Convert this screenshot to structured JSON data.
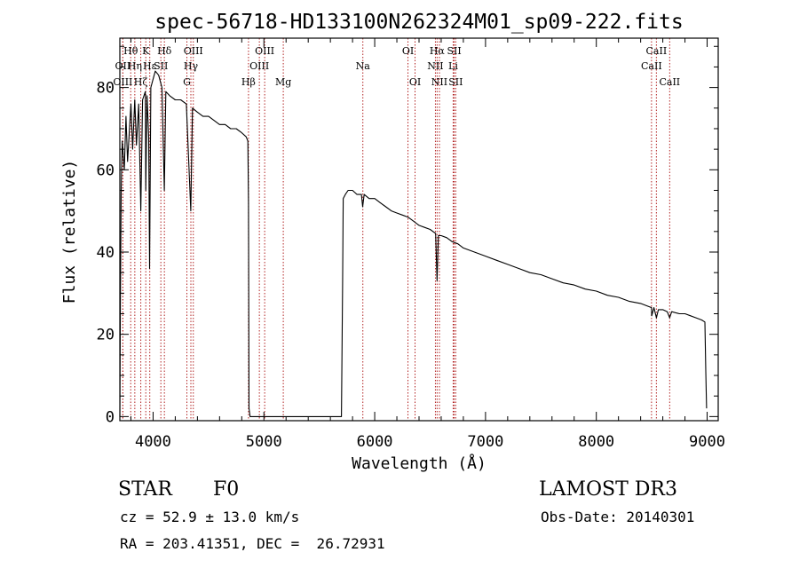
{
  "chart_data": {
    "type": "line",
    "title": "spec-56718-HD133100N262324M01_sp09-222.fits",
    "xlabel": "Wavelength (Å)",
    "ylabel": "Flux (relative)",
    "xlim": [
      3700,
      9100
    ],
    "ylim": [
      -1,
      92
    ],
    "xticks": [
      4000,
      5000,
      6000,
      7000,
      8000,
      9000
    ],
    "yticks": [
      0,
      20,
      40,
      60,
      80
    ],
    "series": [
      {
        "name": "flux",
        "points": [
          [
            3700,
            0
          ],
          [
            3705,
            28
          ],
          [
            3712,
            55
          ],
          [
            3722,
            67
          ],
          [
            3740,
            60
          ],
          [
            3755,
            73
          ],
          [
            3770,
            62
          ],
          [
            3800,
            76
          ],
          [
            3815,
            65
          ],
          [
            3835,
            77
          ],
          [
            3850,
            66
          ],
          [
            3870,
            76
          ],
          [
            3889,
            50
          ],
          [
            3905,
            77
          ],
          [
            3930,
            79
          ],
          [
            3934,
            55
          ],
          [
            3945,
            78
          ],
          [
            3960,
            68
          ],
          [
            3968,
            36
          ],
          [
            3980,
            80
          ],
          [
            4000,
            82
          ],
          [
            4020,
            84
          ],
          [
            4050,
            83
          ],
          [
            4080,
            80
          ],
          [
            4101,
            55
          ],
          [
            4115,
            79
          ],
          [
            4150,
            78
          ],
          [
            4200,
            77
          ],
          [
            4250,
            77
          ],
          [
            4300,
            76
          ],
          [
            4340,
            50
          ],
          [
            4355,
            75
          ],
          [
            4400,
            74
          ],
          [
            4450,
            73
          ],
          [
            4500,
            73
          ],
          [
            4550,
            72
          ],
          [
            4600,
            71
          ],
          [
            4650,
            71
          ],
          [
            4700,
            70
          ],
          [
            4750,
            70
          ],
          [
            4800,
            69
          ],
          [
            4840,
            68
          ],
          [
            4855,
            67
          ],
          [
            4861,
            52
          ],
          [
            4866,
            2
          ],
          [
            4875,
            0
          ],
          [
            5700,
            0
          ],
          [
            5710,
            32
          ],
          [
            5716,
            53
          ],
          [
            5735,
            54
          ],
          [
            5760,
            55
          ],
          [
            5800,
            55
          ],
          [
            5840,
            54
          ],
          [
            5880,
            54
          ],
          [
            5891,
            51
          ],
          [
            5905,
            54
          ],
          [
            5950,
            53
          ],
          [
            6000,
            53
          ],
          [
            6050,
            52
          ],
          [
            6100,
            51
          ],
          [
            6150,
            50
          ],
          [
            6200,
            49.5
          ],
          [
            6250,
            49
          ],
          [
            6300,
            48.5
          ],
          [
            6350,
            47.5
          ],
          [
            6400,
            46.5
          ],
          [
            6450,
            46
          ],
          [
            6500,
            45.5
          ],
          [
            6550,
            44.5
          ],
          [
            6563,
            33
          ],
          [
            6575,
            44
          ],
          [
            6600,
            44
          ],
          [
            6650,
            43.5
          ],
          [
            6700,
            42.5
          ],
          [
            6750,
            42
          ],
          [
            6800,
            41
          ],
          [
            6900,
            40
          ],
          [
            7000,
            39
          ],
          [
            7100,
            38
          ],
          [
            7200,
            37
          ],
          [
            7300,
            36
          ],
          [
            7400,
            35
          ],
          [
            7500,
            34.5
          ],
          [
            7600,
            33.5
          ],
          [
            7700,
            32.5
          ],
          [
            7800,
            32
          ],
          [
            7900,
            31
          ],
          [
            8000,
            30.5
          ],
          [
            8100,
            29.5
          ],
          [
            8200,
            29
          ],
          [
            8300,
            28
          ],
          [
            8400,
            27.5
          ],
          [
            8498,
            26.5
          ],
          [
            8500,
            24.5
          ],
          [
            8520,
            26.5
          ],
          [
            8542,
            24
          ],
          [
            8560,
            26
          ],
          [
            8600,
            26
          ],
          [
            8640,
            25.5
          ],
          [
            8662,
            24
          ],
          [
            8680,
            25.5
          ],
          [
            8750,
            25
          ],
          [
            8800,
            25
          ],
          [
            8850,
            24.5
          ],
          [
            8900,
            24
          ],
          [
            8950,
            23.5
          ],
          [
            8980,
            23
          ],
          [
            8988,
            11
          ],
          [
            8995,
            2
          ]
        ]
      }
    ],
    "lines": [
      {
        "label": "Hθ",
        "x": 3798,
        "row": 0
      },
      {
        "label": "OII",
        "x": 3727,
        "row": 1
      },
      {
        "label": "Hη",
        "x": 3835,
        "row": 1
      },
      {
        "label": "OIII",
        "x": 3727,
        "row": 2
      },
      {
        "label": "Hζ",
        "x": 3889,
        "row": 2
      },
      {
        "label": "K",
        "x": 3934,
        "row": 0
      },
      {
        "label": "Hε",
        "x": 3970,
        "row": 1
      },
      {
        "label": "SII",
        "x": 4070,
        "row": 1
      },
      {
        "label": "Hδ",
        "x": 4102,
        "row": 0
      },
      {
        "label": "OIII",
        "x": 4363,
        "row": 0
      },
      {
        "label": "Hγ",
        "x": 4341,
        "row": 1
      },
      {
        "label": "G",
        "x": 4305,
        "row": 2
      },
      {
        "label": "Hβ",
        "x": 4861,
        "row": 2
      },
      {
        "label": "OIII",
        "x": 5007,
        "row": 0
      },
      {
        "label": "OIII",
        "x": 4959,
        "row": 1
      },
      {
        "label": "Mg",
        "x": 5175,
        "row": 2
      },
      {
        "label": "Na",
        "x": 5893,
        "row": 1
      },
      {
        "label": "OI",
        "x": 6300,
        "row": 0
      },
      {
        "label": "OI",
        "x": 6364,
        "row": 2
      },
      {
        "label": "Hα",
        "x": 6563,
        "row": 0
      },
      {
        "label": "NII",
        "x": 6548,
        "row": 1
      },
      {
        "label": "NII",
        "x": 6584,
        "row": 2
      },
      {
        "label": "SII",
        "x": 6717,
        "row": 0
      },
      {
        "label": "Li",
        "x": 6708,
        "row": 1
      },
      {
        "label": "SII",
        "x": 6731,
        "row": 2
      },
      {
        "label": "CaII",
        "x": 8542,
        "row": 0
      },
      {
        "label": "CaII",
        "x": 8498,
        "row": 1
      },
      {
        "label": "CaII",
        "x": 8662,
        "row": 2
      }
    ]
  },
  "info": {
    "class_label": "STAR",
    "subclass": "F0",
    "survey": "LAMOST DR3",
    "cz": "cz = 52.9 ± 13.0 km/s",
    "obs_date": "Obs-Date: 20140301",
    "coords": "RA = 203.41351, DEC =  26.72931"
  },
  "colors": {
    "spectrum": "#000000",
    "line_marker": "#b22222",
    "axes": "#000000",
    "background": "#ffffff"
  }
}
